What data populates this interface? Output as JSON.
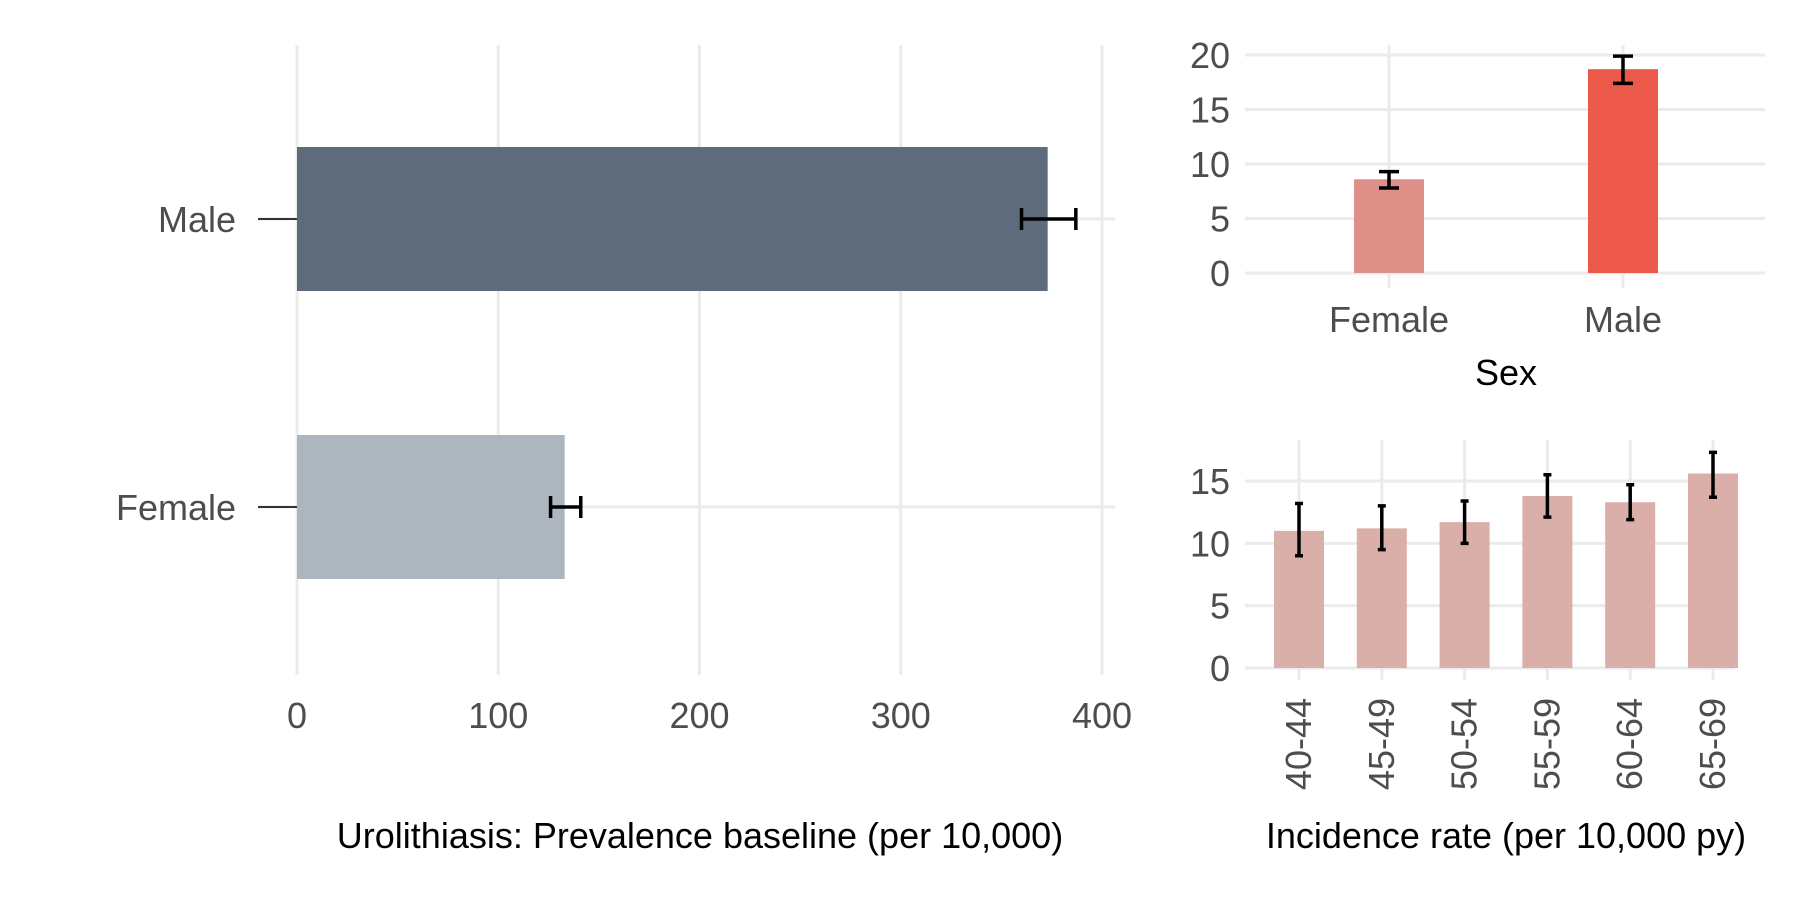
{
  "chart_data": [
    {
      "id": "prevalence",
      "type": "bar",
      "orientation": "horizontal",
      "categories": [
        "Male",
        "Female"
      ],
      "values": [
        373,
        133
      ],
      "error_low": [
        360,
        126
      ],
      "error_high": [
        387,
        141
      ],
      "colors": [
        "#5d6b7b",
        "#adb5be"
      ],
      "xlabel": "Urolithiasis: Prevalence baseline (per 10,000)",
      "ylabel": "",
      "xlim": [
        0,
        400
      ],
      "xticks": [
        0,
        100,
        200,
        300,
        400
      ],
      "grid": true
    },
    {
      "id": "incidence_by_sex",
      "type": "bar",
      "categories": [
        "Female",
        "Male"
      ],
      "values": [
        8.6,
        18.7
      ],
      "error_low": [
        7.8,
        17.4
      ],
      "error_high": [
        9.3,
        19.9
      ],
      "colors": [
        "#dd8f88",
        "#ec594a"
      ],
      "xlabel": "Sex",
      "ylabel": "",
      "ylim": [
        0,
        20
      ],
      "yticks": [
        0,
        5,
        10,
        15,
        20
      ],
      "grid": true
    },
    {
      "id": "incidence_by_age",
      "type": "bar",
      "categories": [
        "40-44",
        "45-49",
        "50-54",
        "55-59",
        "60-64",
        "65-69"
      ],
      "values": [
        11.0,
        11.2,
        11.7,
        13.8,
        13.3,
        15.6
      ],
      "error_low": [
        9.0,
        9.5,
        10.0,
        12.1,
        11.9,
        13.7
      ],
      "error_high": [
        13.2,
        13.0,
        13.4,
        15.5,
        14.7,
        17.3
      ],
      "colors": [
        "#daafa9"
      ],
      "xlabel": "Incidence rate (per 10,000 py)",
      "ylabel": "",
      "ylim": [
        0,
        15
      ],
      "yticks": [
        0,
        5,
        10,
        15
      ],
      "grid": true
    }
  ]
}
